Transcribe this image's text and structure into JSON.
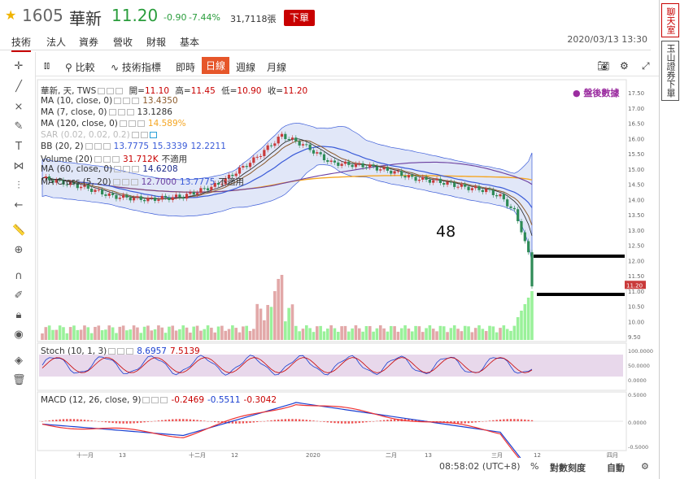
{
  "header": {
    "symbol": "1605",
    "name": "華新",
    "price": "11.20",
    "change": "-0.90",
    "change_pct": "-7.44%",
    "volume": "31,7118張",
    "order_label": "下單"
  },
  "nav": {
    "tabs": [
      "技術",
      "法人",
      "資券",
      "營收",
      "財報",
      "基本"
    ],
    "active": "技術",
    "datetime": "2020/03/13 13:30"
  },
  "chat": {
    "button1": "聊天室",
    "button2": "玉山證券下單"
  },
  "chart_toolbar": {
    "compare": "比較",
    "indicators": "技術指標",
    "realtime": "即時",
    "daily": "日線",
    "weekly": "週線",
    "monthly": "月線"
  },
  "legend": {
    "main": "華新, 天, TWS",
    "open_label": "開=",
    "open": "11.10",
    "high_label": "高=",
    "high": "11.45",
    "low_label": "低=",
    "low": "10.90",
    "close_label": "收=",
    "close": "11.20",
    "ma10": "MA (10, close, 0)",
    "ma10_v": "13.4350",
    "ma7": "MA (7, close, 0)",
    "ma7_v": "13.1286",
    "ma120": "MA (120, close, 0)",
    "ma120_v": "14.589%",
    "sar": "SAR (0.02, 0.02, 0.2)",
    "bb": "BB (20, 2)",
    "bb_v1": "13.7775",
    "bb_v2": "15.3339",
    "bb_v3": "12.2211",
    "volume": "Volume (20)",
    "volume_v": "31.712K",
    "volume_na": "不適用",
    "ma60": "MA (60, close, 0)",
    "ma60_v": "14.6208",
    "macross": "MA Cross (5, 20)",
    "macross_v1": "12.7000",
    "macross_v2": "13.7775",
    "macross_na": "不適用"
  },
  "note": "盤後數據",
  "annotation": "48",
  "stoch": {
    "label": "Stoch (10, 1, 3)",
    "v1": "8.6957",
    "v2": "7.5139"
  },
  "macd": {
    "label": "MACD (12, 26, close, 9)",
    "v1": "-0.2469",
    "v2": "-0.5511",
    "v3": "-0.3042"
  },
  "price_axis": [
    "17.50",
    "17.00",
    "16.50",
    "16.00",
    "15.50",
    "15.00",
    "14.50",
    "14.00",
    "13.50",
    "13.00",
    "12.50",
    "12.00",
    "11.50",
    "11.00",
    "10.50",
    "10.00",
    "9.50"
  ],
  "last_price_tag": "11.20",
  "stoch_axis": [
    "100.0000",
    "50.0000",
    "0.0000"
  ],
  "macd_axis": [
    "0.5000",
    "0.0000",
    "-0.5000"
  ],
  "date_axis": [
    "十一月",
    "13",
    "十二月",
    "12",
    "2020",
    "二月",
    "13",
    "三月",
    "12",
    "四月"
  ],
  "status": {
    "time": "08:58:02 (UTC+8)",
    "pct": "%",
    "log": "對數刻度",
    "auto": "自動"
  },
  "colors": {
    "up": "#c93a3a",
    "down": "#2e8b57",
    "ma10": "#8b5a2b",
    "ma7": "#222",
    "ma120": "#f5a623",
    "bb": "#3a5bd8",
    "bbfill": "#c8d3f2",
    "macross": "#6b3fa0",
    "stochfill": "#d8bede"
  }
}
